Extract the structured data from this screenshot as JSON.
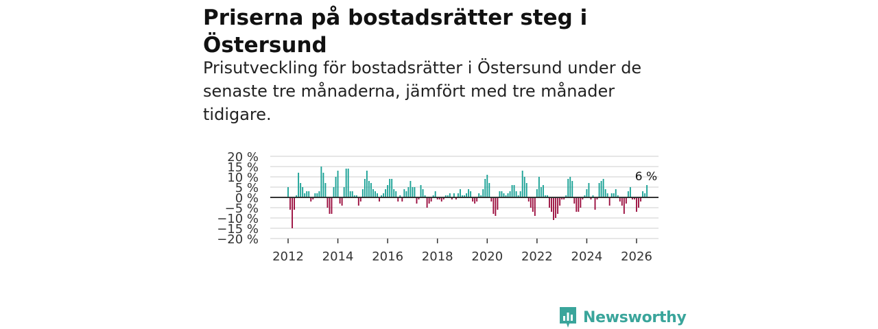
{
  "header": {
    "title": "Priserna på bostadsrätter steg i Östersund",
    "subtitle": "Prisutveckling för bostadsrätter i Östersund under de senaste tre månaderna, jämfört med tre månader tidigare."
  },
  "brand": {
    "name": "Newsworthy",
    "color": "#3aa59b"
  },
  "colors": {
    "positive": "#19a195",
    "negative": "#9b0d3e",
    "grid": "#dddddd",
    "zero": "#333333"
  },
  "chart_data": {
    "type": "bar",
    "title": "",
    "xlabel": "",
    "ylabel": "",
    "ylim": [
      -20,
      20
    ],
    "y_ticks": [
      20,
      15,
      10,
      5,
      0,
      -5,
      -10,
      -15,
      -20
    ],
    "y_tick_labels": [
      "20 %",
      "15 %",
      "10 %",
      "5 %",
      "0 %",
      "−5 %",
      "−10 %",
      "−15 %",
      "−20 %"
    ],
    "x_ticks": [
      2012,
      2014,
      2016,
      2018,
      2020,
      2022,
      2024,
      2026
    ],
    "x_tick_labels": [
      "2012",
      "2014",
      "2016",
      "2018",
      "2020",
      "2022",
      "2024",
      "2026"
    ],
    "series_start": 2012.0,
    "interval": "month",
    "values": [
      5,
      -6,
      -15,
      -6,
      1,
      12,
      7,
      5,
      2,
      3,
      3,
      -2,
      -1,
      2,
      2,
      3,
      15,
      12,
      7,
      -5,
      -8,
      -8,
      5,
      10,
      13,
      -3,
      -4,
      5,
      14,
      14,
      3,
      3,
      1,
      1,
      -4,
      -2,
      4,
      9,
      13,
      8,
      7,
      4,
      3,
      2,
      -2,
      1,
      2,
      4,
      6,
      9,
      9,
      4,
      3,
      -2,
      1,
      -2,
      4,
      3,
      5,
      8,
      5,
      5,
      -3,
      -1,
      6,
      4,
      1,
      -5,
      -3,
      -2,
      1,
      3,
      -1,
      -1,
      -2,
      -1,
      1,
      1,
      2,
      -1,
      2,
      -1,
      2,
      4,
      1,
      1,
      2,
      4,
      3,
      -2,
      -3,
      -2,
      2,
      1,
      4,
      9,
      11,
      7,
      -2,
      -8,
      -9,
      -6,
      3,
      3,
      2,
      1,
      2,
      3,
      6,
      6,
      3,
      1,
      3,
      13,
      10,
      7,
      -2,
      -5,
      -7,
      -9,
      4,
      10,
      5,
      6,
      1,
      1,
      -5,
      -7,
      -11,
      -10,
      -8,
      -4,
      -1,
      -1,
      1,
      9,
      10,
      8,
      -3,
      -7,
      -7,
      -5,
      -1,
      1,
      4,
      7,
      -1,
      1,
      -6,
      -1,
      7,
      8,
      9,
      4,
      2,
      -4,
      2,
      2,
      4,
      1,
      -2,
      -4,
      -8,
      -3,
      3,
      5,
      -1,
      -1,
      -7,
      -5,
      -2,
      3,
      2,
      6
    ]
  },
  "annotation": {
    "label": "6 %"
  }
}
